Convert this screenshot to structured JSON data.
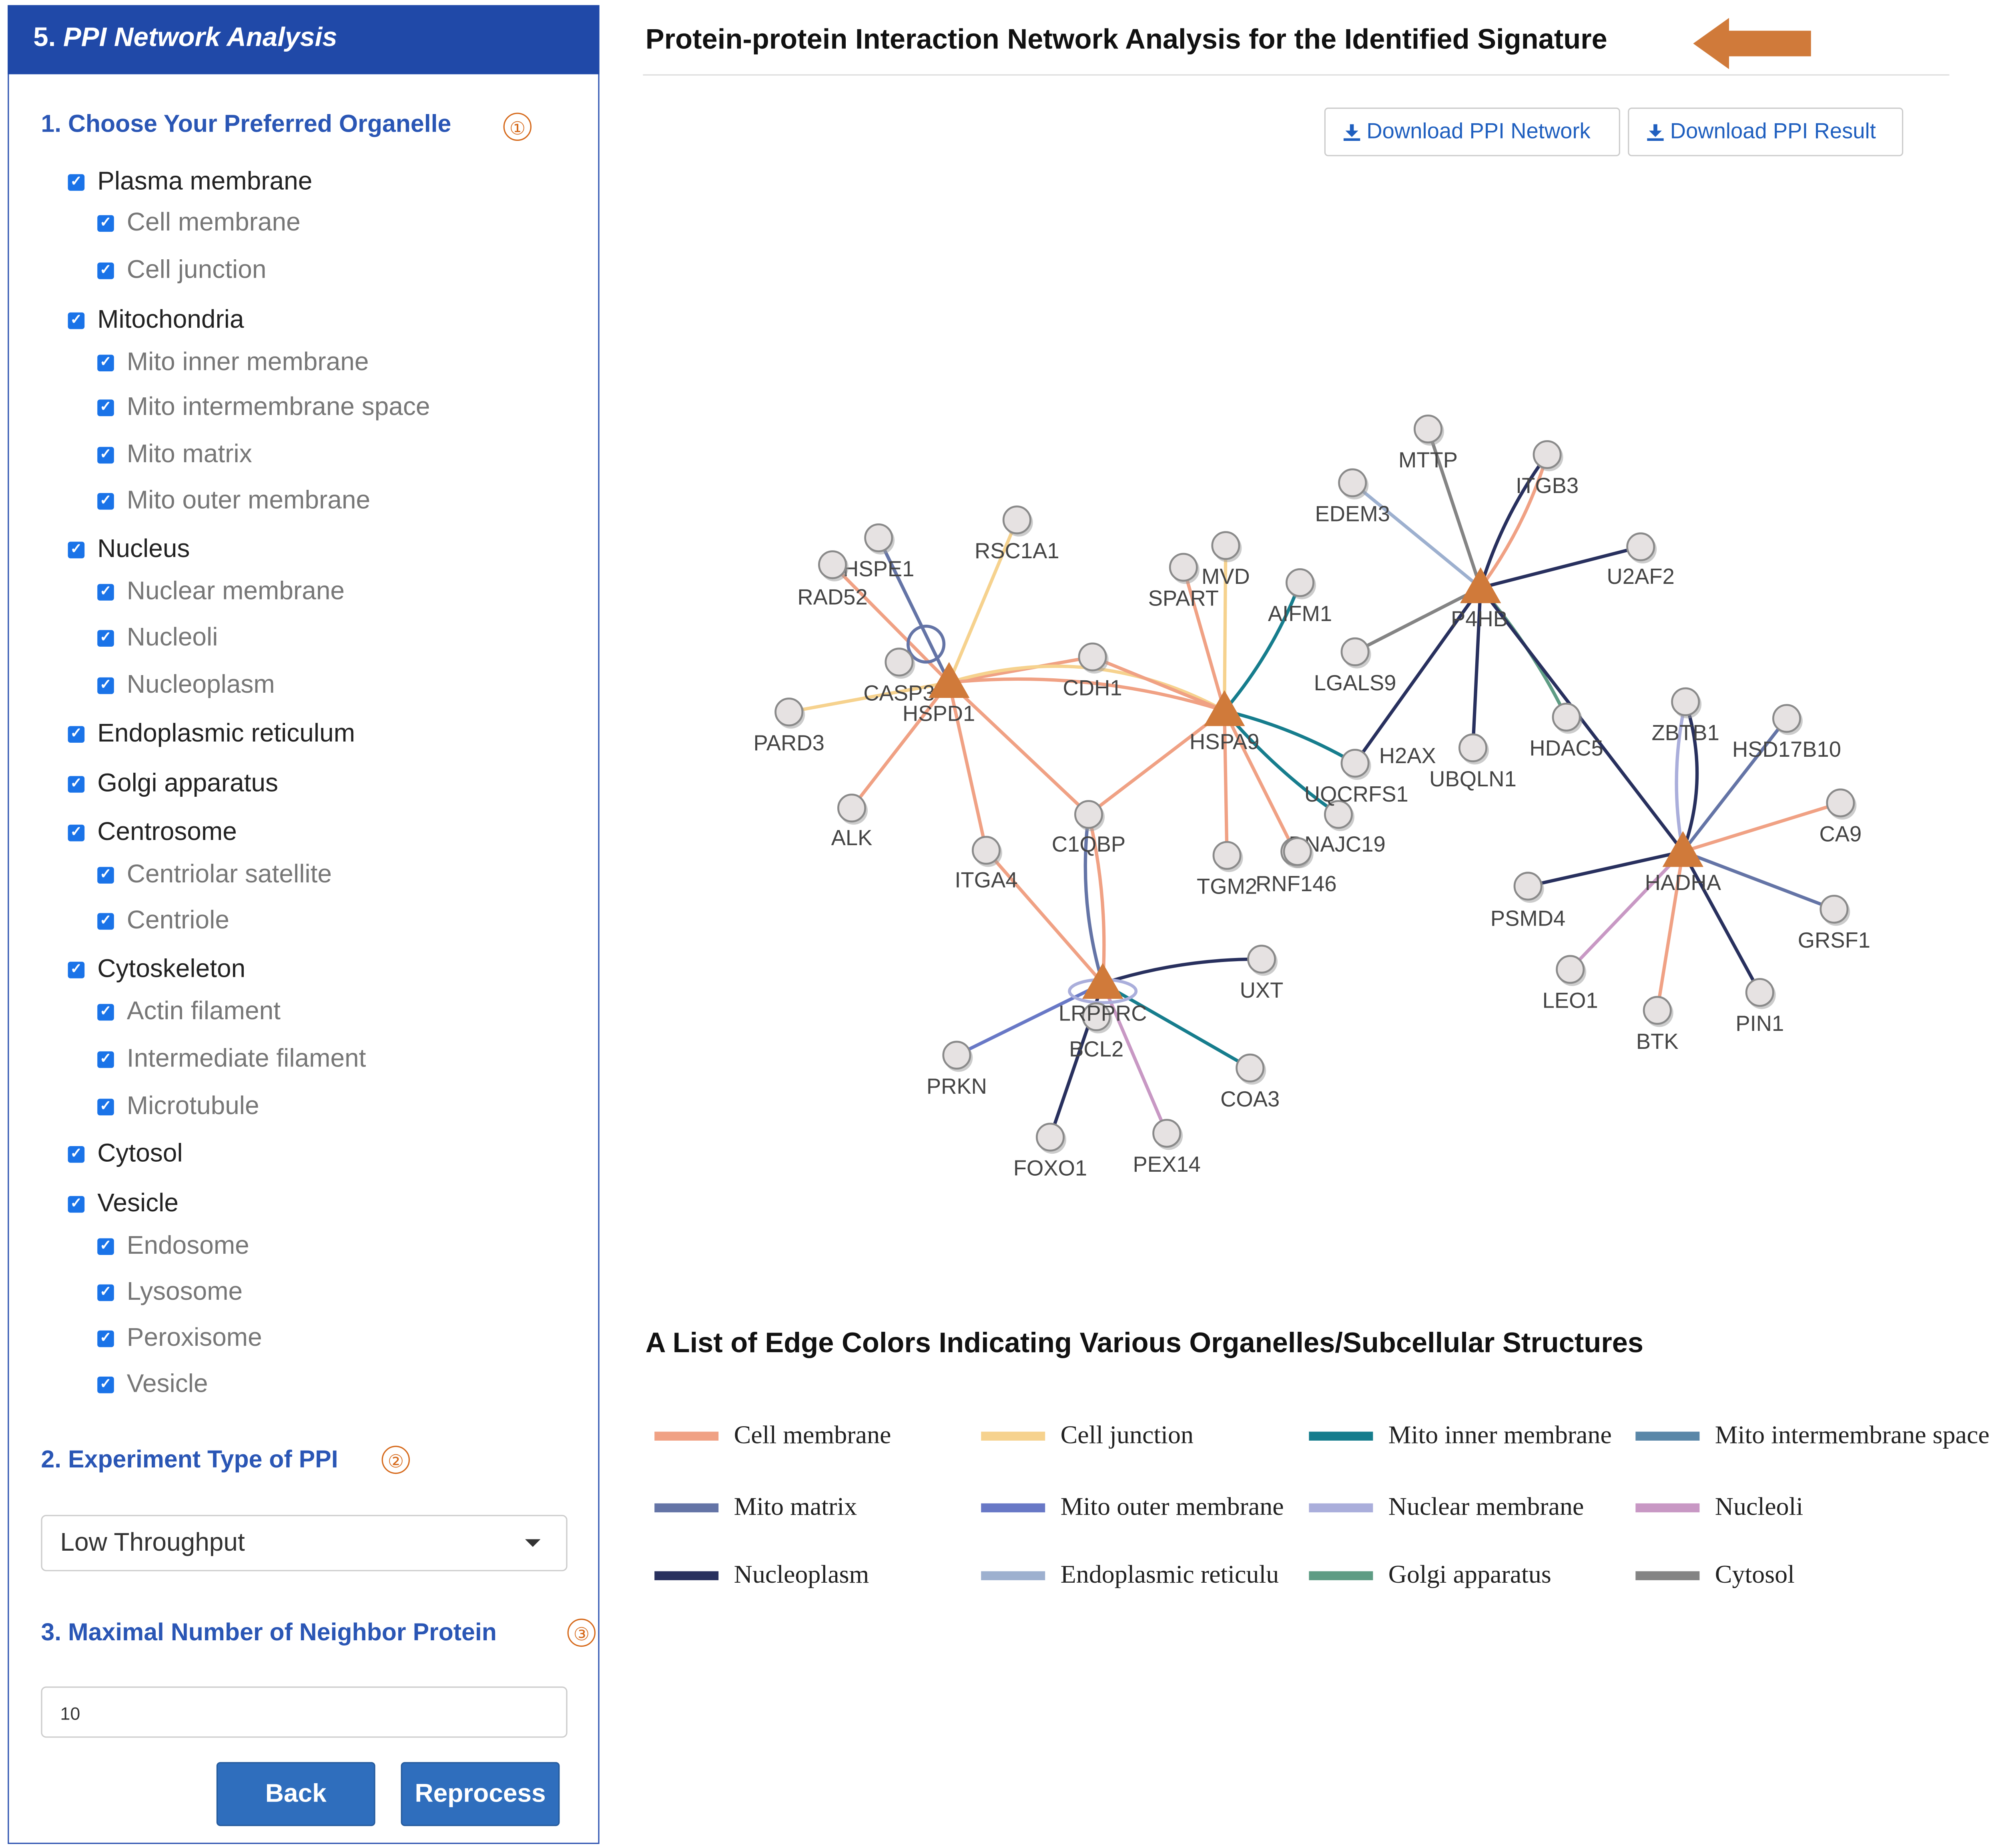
{
  "panel": {
    "header_num": "5.",
    "header_title": "PPI Network Analysis",
    "section1_title": "1. Choose Your Preferred Organelle",
    "section1_marker": "①",
    "organelles": [
      {
        "label": "Plasma membrane",
        "level": 1
      },
      {
        "label": "Cell membrane",
        "level": 2
      },
      {
        "label": "Cell junction",
        "level": 2
      },
      {
        "label": "Mitochondria",
        "level": 1
      },
      {
        "label": "Mito inner membrane",
        "level": 2
      },
      {
        "label": "Mito intermembrane space",
        "level": 2
      },
      {
        "label": "Mito matrix",
        "level": 2
      },
      {
        "label": "Mito outer membrane",
        "level": 2
      },
      {
        "label": "Nucleus",
        "level": 1
      },
      {
        "label": "Nuclear membrane",
        "level": 2
      },
      {
        "label": "Nucleoli",
        "level": 2
      },
      {
        "label": "Nucleoplasm",
        "level": 2
      },
      {
        "label": "Endoplasmic reticulum",
        "level": 1
      },
      {
        "label": "Golgi apparatus",
        "level": 1
      },
      {
        "label": "Centrosome",
        "level": 1
      },
      {
        "label": "Centriolar satellite",
        "level": 2
      },
      {
        "label": "Centriole",
        "level": 2
      },
      {
        "label": "Cytoskeleton",
        "level": 1
      },
      {
        "label": "Actin filament",
        "level": 2
      },
      {
        "label": "Intermediate filament",
        "level": 2
      },
      {
        "label": "Microtubule",
        "level": 2
      },
      {
        "label": "Cytosol",
        "level": 1
      },
      {
        "label": "Vesicle",
        "level": 1
      },
      {
        "label": "Endosome",
        "level": 2
      },
      {
        "label": "Lysosome",
        "level": 2
      },
      {
        "label": "Peroxisome",
        "level": 2
      },
      {
        "label": "Vesicle",
        "level": 2
      }
    ],
    "checked_mark": "✓",
    "section2_title": "2. Experiment Type of PPI",
    "section2_marker": "②",
    "experiment_type": "Low Throughput",
    "section3_title": "3. Maximal Number of Neighbor Protein",
    "section3_marker": "③",
    "max_neighbor": "10",
    "back_label": "Back",
    "reprocess_label": "Reprocess"
  },
  "main": {
    "title": "Protein-protein Interaction Network Analysis for the Identified Signature",
    "download_network": "Download PPI Network",
    "download_result": "Download PPI Result",
    "legend_title": "A List of Edge Colors Indicating Various Organelles/Subcellular Structures",
    "legend": [
      {
        "label": "Cell membrane",
        "color": "#f0a184"
      },
      {
        "label": "Cell junction",
        "color": "#f6d28e"
      },
      {
        "label": "Mito inner membrane",
        "color": "#167d8d"
      },
      {
        "label": "Mito intermembrane space",
        "color": "#5a87a8"
      },
      {
        "label": "Mito matrix",
        "color": "#6474a6"
      },
      {
        "label": "Mito outer membrane",
        "color": "#6878c6"
      },
      {
        "label": "Nuclear membrane",
        "color": "#aaaedb"
      },
      {
        "label": "Nucleoli",
        "color": "#c898c4"
      },
      {
        "label": "Nucleoplasm",
        "color": "#28305e"
      },
      {
        "label": "Endoplasmic reticulu",
        "color": "#9db0cf"
      },
      {
        "label": "Golgi apparatus",
        "color": "#5e9c84"
      },
      {
        "label": "Cytosol",
        "color": "#848484"
      }
    ]
  },
  "network": {
    "hub_color": "#d07a3a",
    "node_fill": "#e6e2e2",
    "hubs": [
      {
        "id": "HSPD1"
      },
      {
        "id": "HSPA9"
      },
      {
        "id": "P4HB"
      },
      {
        "id": "HADHA"
      },
      {
        "id": "LRPPRC"
      }
    ],
    "nodes": [
      {
        "id": "HSPE1"
      },
      {
        "id": "RSC1A1"
      },
      {
        "id": "RAD52"
      },
      {
        "id": "CASP3"
      },
      {
        "id": "PARD3"
      },
      {
        "id": "ALK"
      },
      {
        "id": "ITGA4"
      },
      {
        "id": "CDH1"
      },
      {
        "id": "C1QBP"
      },
      {
        "id": "MVD"
      },
      {
        "id": "SPART"
      },
      {
        "id": "AIFM1"
      },
      {
        "id": "H2AX"
      },
      {
        "id": "UQCRFS1"
      },
      {
        "id": "DNAJC19"
      },
      {
        "id": "TGM2"
      },
      {
        "id": "RNF146"
      },
      {
        "id": "MTTP"
      },
      {
        "id": "EDEM3"
      },
      {
        "id": "ITGB3"
      },
      {
        "id": "U2AF2"
      },
      {
        "id": "LGALS9"
      },
      {
        "id": "UBQLN1"
      },
      {
        "id": "HDAC5"
      },
      {
        "id": "ZBTB1"
      },
      {
        "id": "HSD17B10"
      },
      {
        "id": "CA9"
      },
      {
        "id": "GRSF1"
      },
      {
        "id": "PIN1"
      },
      {
        "id": "BTK"
      },
      {
        "id": "LEO1"
      },
      {
        "id": "PSMD4"
      },
      {
        "id": "UXT"
      },
      {
        "id": "BCL2"
      },
      {
        "id": "COA3"
      },
      {
        "id": "PRKN"
      },
      {
        "id": "PEX14"
      },
      {
        "id": "FOXO1"
      }
    ]
  }
}
